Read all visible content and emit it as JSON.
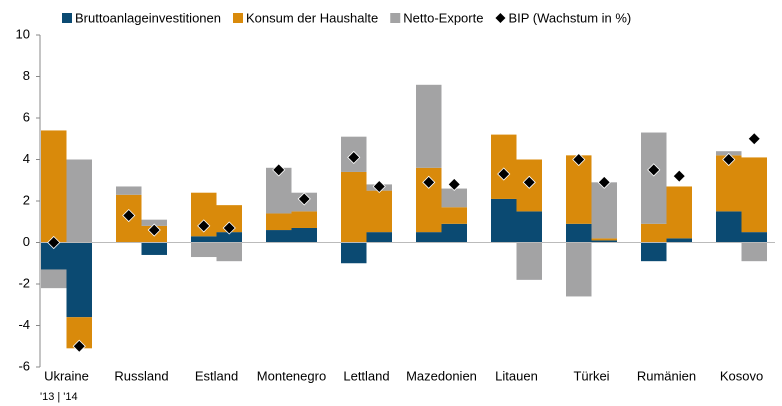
{
  "chart_data": {
    "type": "stacked-bar",
    "categories": [
      "Ukraine",
      "Russland",
      "Estland",
      "Montenegro",
      "Lettland",
      "Mazedonien",
      "Litauen",
      "Türkei",
      "Rumänien",
      "Kosovo"
    ],
    "period_note": "'13 | '14",
    "series": [
      {
        "name": "Bruttoanlageinvestitionen",
        "color": "#0b4a72",
        "values": [
          [
            -1.3,
            -3.6
          ],
          [
            0,
            -0.6
          ],
          [
            0.3,
            0.5
          ],
          [
            0.6,
            0.7
          ],
          [
            -1.0,
            0.5
          ],
          [
            0.5,
            0.9
          ],
          [
            2.1,
            1.5
          ],
          [
            0.9,
            0.1
          ],
          [
            -0.9,
            0.2
          ],
          [
            1.5,
            0.5
          ]
        ]
      },
      {
        "name": "Konsum der Haushalte",
        "color": "#d98a0b",
        "values": [
          [
            5.4,
            -1.5
          ],
          [
            2.3,
            0.8
          ],
          [
            2.1,
            1.3
          ],
          [
            0.8,
            0.8
          ],
          [
            3.4,
            2.0
          ],
          [
            3.1,
            0.8
          ],
          [
            3.1,
            2.5
          ],
          [
            3.3,
            0.1
          ],
          [
            0.9,
            2.5
          ],
          [
            2.7,
            3.6
          ]
        ]
      },
      {
        "name": "Netto-Exporte",
        "color": "#a3a3a4",
        "values": [
          [
            -0.9,
            4.0
          ],
          [
            0.4,
            0.3
          ],
          [
            -0.7,
            -0.9
          ],
          [
            2.2,
            0.9
          ],
          [
            1.7,
            0.3
          ],
          [
            4.0,
            0.9
          ],
          [
            0,
            -1.8
          ],
          [
            -2.6,
            2.7
          ],
          [
            4.4,
            0
          ],
          [
            0.2,
            -0.9
          ]
        ]
      }
    ],
    "bip": {
      "name": "BIP (Wachstum in %)",
      "color": "#000000",
      "values": [
        [
          0,
          -5.0
        ],
        [
          1.3,
          0.6
        ],
        [
          0.8,
          0.7
        ],
        [
          3.5,
          2.1
        ],
        [
          4.1,
          2.7
        ],
        [
          2.9,
          2.8
        ],
        [
          3.3,
          2.9
        ],
        [
          4.0,
          2.9
        ],
        [
          3.5,
          3.2
        ],
        [
          4.0,
          5.0
        ]
      ]
    },
    "ylim": [
      -6,
      10
    ],
    "yticks": [
      -6,
      -4,
      -2,
      0,
      2,
      4,
      6,
      8,
      10
    ]
  }
}
